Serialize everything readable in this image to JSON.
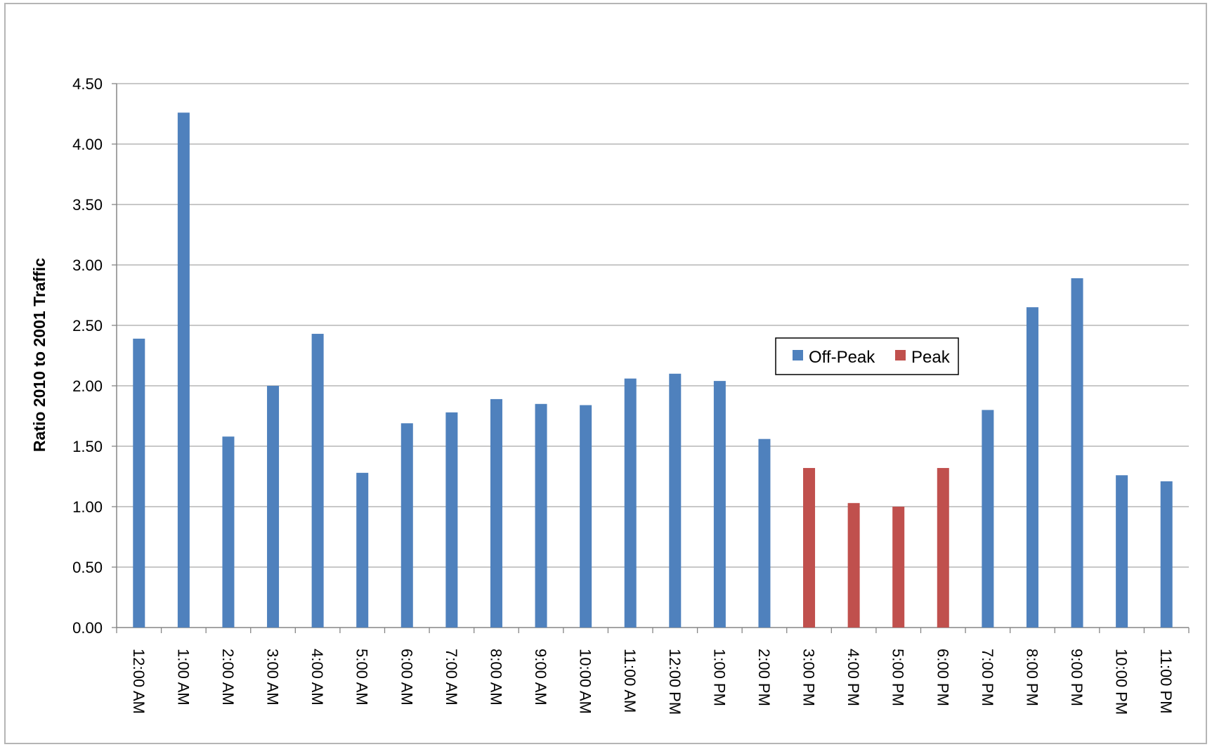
{
  "chart_data": {
    "type": "bar",
    "title": "",
    "xlabel": "",
    "ylabel": "Ratio 2010 to 2001 Traffic",
    "ylim": [
      0,
      4.5
    ],
    "yticks": [
      "0.00",
      "0.50",
      "1.00",
      "1.50",
      "2.00",
      "2.50",
      "3.00",
      "3.50",
      "4.00",
      "4.50"
    ],
    "grid": true,
    "legend_position": "center-right",
    "categories": [
      "12:00 AM",
      "1:00 AM",
      "2:00 AM",
      "3:00 AM",
      "4:00 AM",
      "5:00 AM",
      "6:00 AM",
      "7:00 AM",
      "8:00 AM",
      "9:00 AM",
      "10:00 AM",
      "11:00 AM",
      "12:00 PM",
      "1:00 PM",
      "2:00 PM",
      "3:00 PM",
      "4:00 PM",
      "5:00 PM",
      "6:00 PM",
      "7:00 PM",
      "8:00 PM",
      "9:00 PM",
      "10:00 PM",
      "11:00 PM"
    ],
    "series": [
      {
        "name": "Off-Peak",
        "color": "#4f81bd",
        "values": [
          2.39,
          4.26,
          1.58,
          2.0,
          2.43,
          1.28,
          1.69,
          1.78,
          1.89,
          1.85,
          1.84,
          2.06,
          2.1,
          2.04,
          1.56,
          null,
          null,
          null,
          null,
          1.8,
          2.65,
          2.89,
          1.26,
          1.21
        ]
      },
      {
        "name": "Peak",
        "color": "#c0504d",
        "values": [
          null,
          null,
          null,
          null,
          null,
          null,
          null,
          null,
          null,
          null,
          null,
          null,
          null,
          null,
          null,
          1.32,
          1.03,
          1.0,
          1.32,
          null,
          null,
          null,
          null,
          null
        ]
      }
    ]
  }
}
